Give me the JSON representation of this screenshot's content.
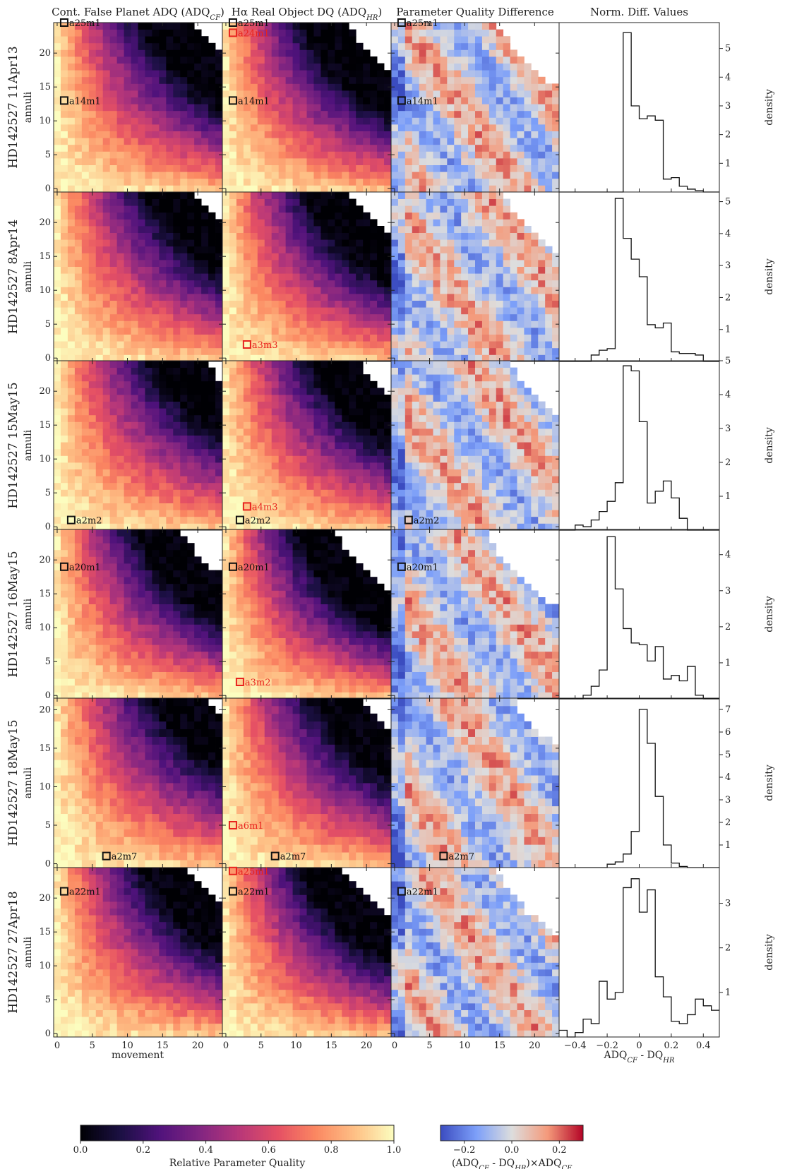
{
  "chart_data": {
    "type": "heatmap",
    "columns": [
      "Cont. False Planet ADQ (ADQ_CF)",
      "Hα Real Object DQ (ADQ_HR)",
      "Parameter Quality Difference",
      "Norm. Diff. Values"
    ],
    "column_title_parts": [
      {
        "main": "Cont. False Planet ADQ (ADQ",
        "sub": "CF",
        "tail": ")"
      },
      {
        "main": "Hα Real Object DQ (ADQ",
        "sub": "HR",
        "tail": ")"
      },
      {
        "main": "Parameter Quality Difference",
        "sub": "",
        "tail": ""
      },
      {
        "main": "Norm. Diff. Values",
        "sub": "",
        "tail": ""
      }
    ],
    "xlabel": "movement",
    "ylabel": "annuli",
    "hist_ylabel": "density",
    "hist_xlabel": {
      "a": "ADQ",
      "a_sub": "CF",
      "b": " - DQ",
      "b_sub": "HR"
    },
    "heatmap_xticks": [
      0,
      5,
      10,
      15,
      20
    ],
    "hist_xticks": [
      -0.4,
      -0.2,
      0.0,
      0.2,
      0.4
    ],
    "hist_xlim": [
      -0.5,
      0.5
    ],
    "colorbar_quality": {
      "ticks": [
        0.0,
        0.2,
        0.4,
        0.6,
        0.8,
        1.0
      ],
      "label": "Relative Parameter Quality",
      "range": [
        0,
        1
      ],
      "colormap": "magma"
    },
    "colorbar_difference": {
      "ticks": [
        -0.2,
        0.0,
        0.2
      ],
      "label": {
        "p1": "(ADQ",
        "s1": "CF",
        "p2": " - DQ",
        "s2": "HR",
        "p3": ")×ADQ",
        "s3": "CF"
      },
      "range": [
        -0.3,
        0.3
      ],
      "colormap": "coolwarm"
    },
    "rows": [
      {
        "label": "HD142527 11Apr13",
        "yticks": [
          0,
          5,
          10,
          15,
          20
        ],
        "ymax": 24,
        "decay": 1.0,
        "marks": [
          {
            "col": 0,
            "text": "a14m1",
            "x": 1,
            "y": 13,
            "color": "black"
          },
          {
            "col": 1,
            "text": "a24m1",
            "x": 1,
            "y": 23,
            "color": "red"
          },
          {
            "col": 1,
            "text": "a14m1",
            "x": 1,
            "y": 13,
            "color": "black"
          },
          {
            "col": 2,
            "text": "a14m1",
            "x": 1,
            "y": 13,
            "color": "black"
          },
          {
            "col": 0,
            "text": "a25m1",
            "x": 1,
            "y": 24.5,
            "color": "black"
          },
          {
            "col": 1,
            "text": "a25m1",
            "x": 1,
            "y": 24.5,
            "color": "black"
          },
          {
            "col": 2,
            "text": "a25m1",
            "x": 1,
            "y": 24.5,
            "color": "black"
          }
        ],
        "hist_yticks": [
          1,
          2,
          3,
          4,
          5
        ],
        "hist_ymax": 5.9,
        "hist_bins": [
          -0.5,
          -0.45,
          -0.4,
          -0.35,
          -0.3,
          -0.25,
          -0.2,
          -0.15,
          -0.1,
          -0.05,
          0.0,
          0.05,
          0.1,
          0.15,
          0.2,
          0.25,
          0.3,
          0.35,
          0.4,
          0.45,
          0.5
        ],
        "hist_values": [
          0,
          0,
          0,
          0,
          0,
          0,
          0,
          0,
          5.55,
          3.0,
          2.55,
          2.65,
          2.5,
          0.45,
          0.5,
          0.2,
          0.1,
          0.05,
          0,
          0
        ]
      },
      {
        "label": "HD142527 8Apr14",
        "yticks": [
          0,
          5,
          10,
          15,
          20
        ],
        "ymax": 24,
        "decay": 1.15,
        "marks": [
          {
            "col": 1,
            "text": "a3m3",
            "x": 3,
            "y": 2,
            "color": "red"
          }
        ],
        "hist_yticks": [
          1,
          2,
          3,
          4,
          5
        ],
        "hist_ymax": 5.3,
        "hist_bins": [
          -0.5,
          -0.45,
          -0.4,
          -0.35,
          -0.3,
          -0.25,
          -0.2,
          -0.15,
          -0.1,
          -0.05,
          0.0,
          0.05,
          0.1,
          0.15,
          0.2,
          0.25,
          0.3,
          0.35,
          0.4,
          0.45,
          0.5
        ],
        "hist_values": [
          0,
          0,
          0,
          0,
          0.2,
          0.35,
          0.4,
          5.1,
          3.85,
          3.2,
          2.65,
          1.15,
          1.05,
          1.2,
          0.3,
          0.25,
          0.25,
          0.2,
          0,
          0
        ]
      },
      {
        "label": "HD142527 15May15",
        "yticks": [
          0,
          5,
          10,
          15,
          20
        ],
        "ymax": 24,
        "decay": 1.45,
        "marks": [
          {
            "col": 0,
            "text": "a2m2",
            "x": 2,
            "y": 1,
            "color": "black"
          },
          {
            "col": 1,
            "text": "a4m3",
            "x": 3,
            "y": 3,
            "color": "red"
          },
          {
            "col": 1,
            "text": "a2m2",
            "x": 2,
            "y": 1,
            "color": "black"
          },
          {
            "col": 2,
            "text": "a2m2",
            "x": 2,
            "y": 1,
            "color": "black"
          }
        ],
        "hist_yticks": [
          1,
          2,
          3,
          4,
          5
        ],
        "hist_ymax": 5.0,
        "hist_bins": [
          -0.5,
          -0.45,
          -0.4,
          -0.35,
          -0.3,
          -0.25,
          -0.2,
          -0.15,
          -0.1,
          -0.05,
          0.0,
          0.05,
          0.1,
          0.15,
          0.2,
          0.25,
          0.3,
          0.35,
          0.4,
          0.45,
          0.5
        ],
        "hist_values": [
          0,
          0,
          0.15,
          0.1,
          0.3,
          0.55,
          0.85,
          1.4,
          4.85,
          4.7,
          3.2,
          0.8,
          1.15,
          1.45,
          0.95,
          0.35,
          0,
          0,
          0,
          0
        ]
      },
      {
        "label": "HD142527 16May15",
        "yticks": [
          0,
          5,
          10,
          15,
          20
        ],
        "ymax": 24,
        "decay": 0.55,
        "marks": [
          {
            "col": 0,
            "text": "a20m1",
            "x": 1,
            "y": 19,
            "color": "black"
          },
          {
            "col": 1,
            "text": "a20m1",
            "x": 1,
            "y": 19,
            "color": "black"
          },
          {
            "col": 1,
            "text": "a3m2",
            "x": 2,
            "y": 2,
            "color": "red"
          },
          {
            "col": 2,
            "text": "a20m1",
            "x": 1,
            "y": 19,
            "color": "black"
          }
        ],
        "hist_yticks": [
          1,
          2,
          3,
          4
        ],
        "hist_ymax": 4.7,
        "hist_bins": [
          -0.5,
          -0.45,
          -0.4,
          -0.35,
          -0.3,
          -0.25,
          -0.2,
          -0.15,
          -0.1,
          -0.05,
          0.0,
          0.05,
          0.1,
          0.15,
          0.2,
          0.25,
          0.3,
          0.35,
          0.4,
          0.45,
          0.5
        ],
        "hist_values": [
          0,
          0,
          0,
          0.1,
          0.35,
          0.8,
          4.5,
          3.05,
          1.95,
          1.55,
          1.5,
          1.05,
          1.45,
          0.55,
          0.65,
          0.5,
          0.9,
          0.1,
          0,
          0
        ]
      },
      {
        "label": "HD142527 18May15",
        "yticks": [
          0,
          5,
          10,
          15,
          20
        ],
        "ymax": 21,
        "decay": 1.6,
        "marks": [
          {
            "col": 0,
            "text": "a2m7",
            "x": 7,
            "y": 1,
            "color": "black"
          },
          {
            "col": 1,
            "text": "a6m1",
            "x": 1,
            "y": 5,
            "color": "red"
          },
          {
            "col": 1,
            "text": "a2m7",
            "x": 7,
            "y": 1,
            "color": "black"
          },
          {
            "col": 2,
            "text": "a2m7",
            "x": 7,
            "y": 1,
            "color": "black"
          }
        ],
        "hist_yticks": [
          1,
          2,
          3,
          4,
          5,
          6,
          7
        ],
        "hist_ymax": 7.5,
        "hist_bins": [
          -0.5,
          -0.45,
          -0.4,
          -0.35,
          -0.3,
          -0.25,
          -0.2,
          -0.15,
          -0.1,
          -0.05,
          0.0,
          0.05,
          0.1,
          0.15,
          0.2,
          0.25,
          0.3,
          0.35,
          0.4,
          0.45,
          0.5
        ],
        "hist_values": [
          0,
          0,
          0,
          0,
          0,
          0,
          0.15,
          0.25,
          0.6,
          1.6,
          7.0,
          5.5,
          3.15,
          1.0,
          0.2,
          0.05,
          0,
          0,
          0,
          0
        ]
      },
      {
        "label": "HD142527 27Apr18",
        "yticks": [
          0,
          5,
          10,
          15,
          20
        ],
        "ymax": 24,
        "decay": 0.9,
        "marks": [
          {
            "col": 0,
            "text": "a22m1",
            "x": 1,
            "y": 21,
            "color": "black"
          },
          {
            "col": 1,
            "text": "a25m1",
            "x": 1,
            "y": 24,
            "color": "red"
          },
          {
            "col": 1,
            "text": "a22m1",
            "x": 1,
            "y": 21,
            "color": "black"
          },
          {
            "col": 2,
            "text": "a22m1",
            "x": 1,
            "y": 21,
            "color": "black"
          }
        ],
        "hist_yticks": [
          1,
          2,
          3
        ],
        "hist_ymax": 3.8,
        "hist_bins": [
          -0.5,
          -0.45,
          -0.4,
          -0.35,
          -0.3,
          -0.25,
          -0.2,
          -0.15,
          -0.1,
          -0.05,
          0.0,
          0.05,
          0.1,
          0.15,
          0.2,
          0.25,
          0.3,
          0.35,
          0.4,
          0.45,
          0.5
        ],
        "hist_values": [
          0.15,
          0,
          0.1,
          0.4,
          0.3,
          1.25,
          0.85,
          1.0,
          3.35,
          3.55,
          2.8,
          3.3,
          1.35,
          0.9,
          0.35,
          0.3,
          0.5,
          0.85,
          0.7,
          0.6
        ]
      }
    ]
  }
}
